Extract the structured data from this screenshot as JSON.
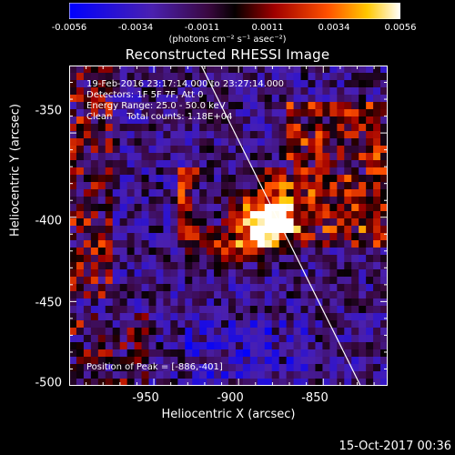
{
  "colorbar": {
    "ticks": [
      "-0.0056",
      "-0.0034",
      "-0.0011",
      "0.0011",
      "0.0034",
      "0.0056"
    ],
    "unit_label": "(photons cm⁻² s⁻¹ asec⁻²)",
    "range": [
      -0.0056,
      0.0056
    ]
  },
  "title": "Reconstructed RHESSI Image",
  "annotations": {
    "time": "19-Feb-2016 23:17:14.000 to 23:27:14.000",
    "detectors": "Detectors: 1F 5F 7F, Att 0",
    "energy": "Energy Range: 25.0 - 50.0 keV",
    "clean": "Clean     Total counts: 1.18E+04",
    "peak": "Position of Peak = [-886,-401]"
  },
  "footer": "15-Oct-2017 00:36",
  "chart_data": {
    "type": "heatmap",
    "title": "Reconstructed RHESSI Image",
    "xlabel": "Heliocentric X (arcsec)",
    "ylabel": "Heliocentric Y (arcsec)",
    "xlim": [
      -1000,
      -812
    ],
    "ylim": [
      -500,
      -310
    ],
    "x_ticks": [
      -950,
      -900,
      -850
    ],
    "y_ticks": [
      -350,
      -400,
      -450,
      -500
    ],
    "peak": [
      -886,
      -401
    ],
    "limb_line": {
      "x": [
        -922,
        -828
      ],
      "y": [
        -310,
        -500
      ]
    }
  }
}
